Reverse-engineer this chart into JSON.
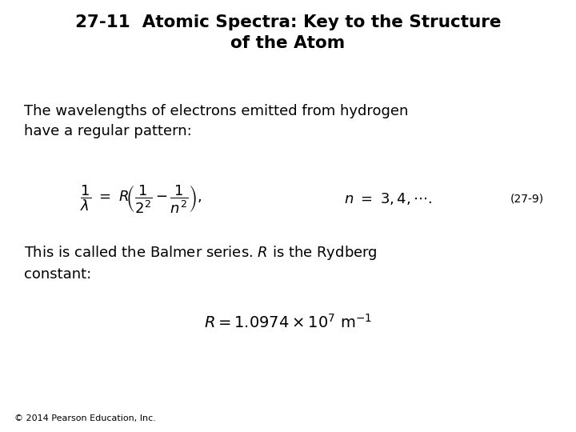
{
  "title_line1": "27-11  Atomic Spectra: Key to the Structure",
  "title_line2": "of the Atom",
  "body_text1_line1": "The wavelengths of electrons emitted from hydrogen",
  "body_text1_line2": "have a regular pattern:",
  "equation1_label": "(27-9)",
  "footer": "© 2014 Pearson Education, Inc.",
  "bg_color": "#ffffff",
  "text_color": "#000000",
  "title_fontsize": 15.5,
  "body_fontsize": 13,
  "eq_fontsize": 13,
  "footer_fontsize": 8
}
